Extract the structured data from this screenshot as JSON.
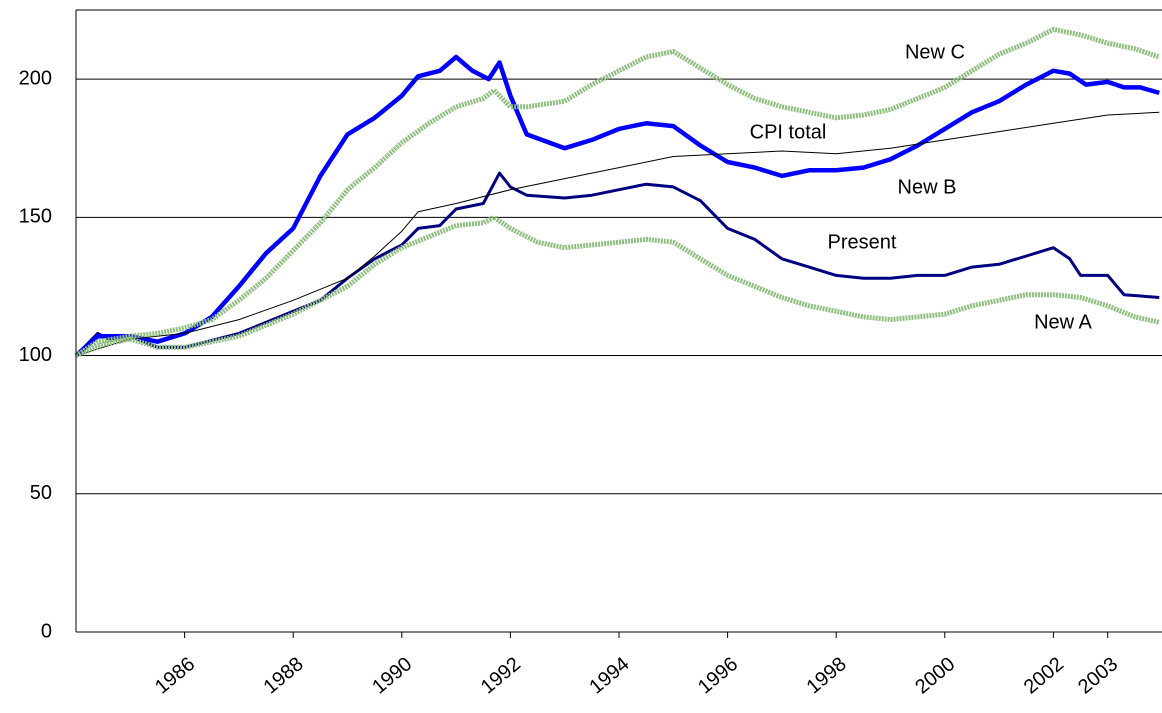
{
  "chart_data": {
    "type": "line",
    "xlim": [
      1984,
      2004
    ],
    "ylim": [
      0,
      225
    ],
    "yticks": [
      0,
      50,
      100,
      150,
      200
    ],
    "xticks": [
      1986,
      1988,
      1990,
      1992,
      1994,
      1996,
      1998,
      2000,
      2002,
      2003
    ],
    "grid": true,
    "series": [
      {
        "name": "Present",
        "color": "#000080",
        "x": [
          1984,
          1984.4,
          1984.6,
          1985,
          1985.5,
          1986,
          1987,
          1988,
          1988.5,
          1989,
          1989.5,
          1990,
          1990.3,
          1990.7,
          1991,
          1991.5,
          1991.8,
          1992,
          1992.3,
          1993,
          1993.5,
          1994,
          1994.5,
          1995,
          1995.5,
          1996,
          1996.5,
          1997,
          1997.5,
          1998,
          1998.5,
          1999,
          1999.5,
          2000,
          2000.5,
          2001,
          2001.5,
          2002,
          2002.3,
          2002.5,
          2003,
          2003.3,
          2003.95
        ],
        "values": [
          100,
          108,
          106,
          107,
          103,
          103,
          108,
          116,
          120,
          128,
          135,
          140,
          146,
          147,
          153,
          155,
          166,
          161,
          158,
          157,
          158,
          160,
          162,
          161,
          156,
          146,
          142,
          135,
          132,
          129,
          128,
          128,
          129,
          129,
          132,
          133,
          136,
          139,
          135,
          129,
          129,
          122,
          121
        ]
      },
      {
        "name": "New B",
        "color": "#0000ff",
        "x": [
          1984,
          1984.4,
          1985,
          1985.5,
          1986,
          1986.5,
          1987,
          1987.5,
          1988,
          1988.5,
          1989,
          1989.5,
          1990,
          1990.3,
          1990.7,
          1991,
          1991.3,
          1991.6,
          1991.8,
          1992,
          1992.3,
          1993,
          1993.5,
          1994,
          1994.5,
          1995,
          1995.5,
          1996,
          1996.5,
          1997,
          1997.5,
          1998,
          1998.5,
          1999,
          1999.5,
          2000,
          2000.5,
          2001,
          2001.5,
          2002,
          2002.3,
          2002.6,
          2003,
          2003.3,
          2003.6,
          2003.95
        ],
        "values": [
          100,
          107,
          107,
          105,
          108,
          114,
          125,
          137,
          146,
          165,
          180,
          186,
          194,
          201,
          203,
          208,
          203,
          200,
          206,
          194,
          180,
          175,
          178,
          182,
          184,
          183,
          176,
          170,
          168,
          165,
          167,
          167,
          168,
          171,
          176,
          182,
          188,
          192,
          198,
          203,
          202,
          198,
          199,
          197,
          197,
          195
        ]
      },
      {
        "name": "CPI total",
        "color": "#000000",
        "x": [
          1984,
          1985,
          1986,
          1987,
          1988,
          1989,
          1989.5,
          1990,
          1990.3,
          1991,
          1992,
          1993,
          1994,
          1995,
          1996,
          1997,
          1998,
          1999,
          2000,
          2001,
          2002,
          2003,
          2003.95
        ],
        "values": [
          100,
          106,
          108,
          113,
          120,
          128,
          136,
          145,
          152,
          155,
          160,
          164,
          168,
          172,
          173,
          174,
          173,
          175,
          178,
          181,
          184,
          187,
          188
        ]
      },
      {
        "name": "New C",
        "color": "#8fbf7f",
        "x": [
          1984,
          1984.4,
          1985,
          1985.5,
          1986,
          1986.5,
          1987,
          1987.5,
          1988,
          1988.5,
          1989,
          1989.5,
          1990,
          1990.5,
          1991,
          1991.5,
          1991.7,
          1992,
          1992.3,
          1993,
          1993.5,
          1994,
          1994.5,
          1995,
          1995.5,
          1996,
          1996.5,
          1997,
          1997.5,
          1998,
          1998.5,
          1999,
          1999.5,
          2000,
          2000.5,
          2001,
          2001.5,
          2002,
          2002.5,
          2003,
          2003.5,
          2003.95
        ],
        "values": [
          100,
          105,
          107,
          108,
          110,
          113,
          120,
          128,
          138,
          148,
          160,
          168,
          177,
          184,
          190,
          193,
          196,
          190,
          190,
          192,
          198,
          203,
          208,
          210,
          204,
          198,
          193,
          190,
          188,
          186,
          187,
          189,
          193,
          197,
          203,
          209,
          213,
          218,
          216,
          213,
          211,
          208
        ]
      },
      {
        "name": "New A",
        "color": "#8fbf7f",
        "x": [
          1984,
          1984.5,
          1985,
          1985.5,
          1986,
          1987,
          1988,
          1989,
          1989.5,
          1990,
          1990.5,
          1991,
          1991.5,
          1991.7,
          1992,
          1992.5,
          1993,
          1993.5,
          1994,
          1994.5,
          1995,
          1995.5,
          1996,
          1996.5,
          1997,
          1997.5,
          1998,
          1998.5,
          1999,
          1999.5,
          2000,
          2000.5,
          2001,
          2001.5,
          2002,
          2002.5,
          2003,
          2003.5,
          2003.95
        ],
        "values": [
          100,
          104,
          106,
          103,
          103,
          107,
          115,
          125,
          133,
          139,
          143,
          147,
          148,
          150,
          146,
          141,
          139,
          140,
          141,
          142,
          141,
          135,
          129,
          125,
          121,
          118,
          116,
          114,
          113,
          114,
          115,
          118,
          120,
          122,
          122,
          121,
          118,
          114,
          112
        ]
      }
    ]
  }
}
